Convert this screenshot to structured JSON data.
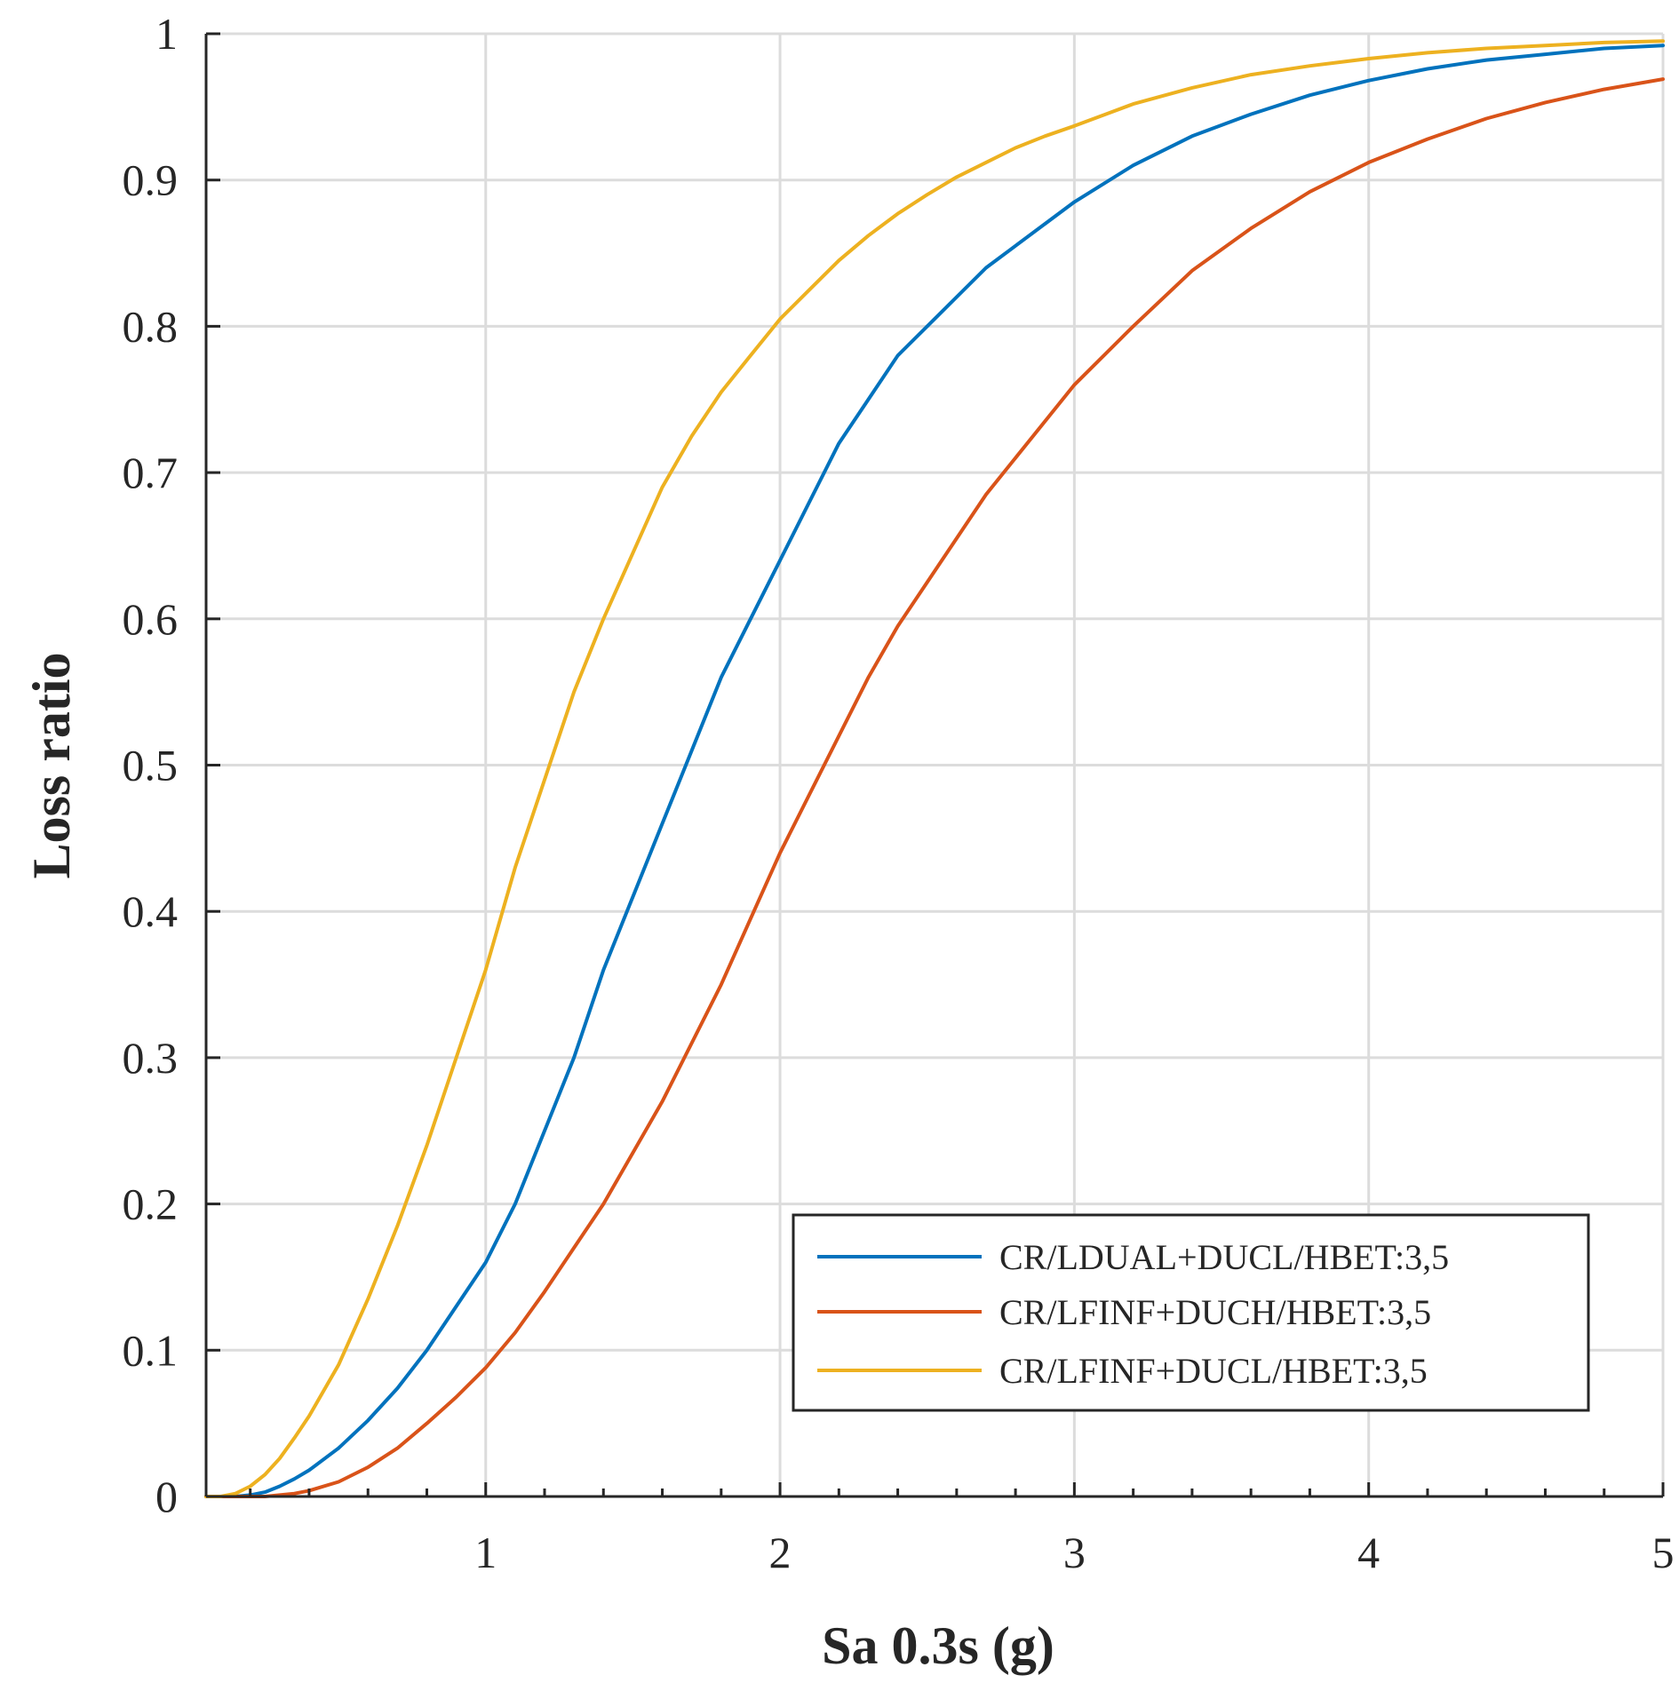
{
  "chart_data": {
    "type": "line",
    "title": "",
    "xlabel": "Sa 0.3s (g)",
    "ylabel": "Loss ratio",
    "xlim": [
      0.05,
      5
    ],
    "ylim": [
      0,
      1
    ],
    "xticks": [
      1,
      2,
      3,
      4,
      5
    ],
    "xtick_labels": [
      "1",
      "2",
      "3",
      "4",
      "5"
    ],
    "yticks": [
      0,
      0.1,
      0.2,
      0.3,
      0.4,
      0.5,
      0.6,
      0.7,
      0.8,
      0.9,
      1
    ],
    "ytick_labels": [
      "0",
      "0.1",
      "0.2",
      "0.3",
      "0.4",
      "0.5",
      "0.6",
      "0.7",
      "0.8",
      "0.9",
      "1"
    ],
    "grid": true,
    "legend_position": "bottom-right",
    "x": [
      0.05,
      0.1,
      0.15,
      0.2,
      0.25,
      0.3,
      0.35,
      0.4,
      0.5,
      0.6,
      0.7,
      0.8,
      0.9,
      1.0,
      1.1,
      1.2,
      1.3,
      1.4,
      1.5,
      1.6,
      1.7,
      1.8,
      1.9,
      2.0,
      2.1,
      2.2,
      2.3,
      2.4,
      2.5,
      2.6,
      2.7,
      2.8,
      2.9,
      3.0,
      3.2,
      3.4,
      3.6,
      3.8,
      4.0,
      4.2,
      4.4,
      4.6,
      4.8,
      5.0
    ],
    "series": [
      {
        "name": "CR/LDUAL+DUCL/HBET:3,5",
        "color": "#0072BD",
        "values": [
          0,
          0,
          0,
          0.001,
          0.003,
          0.007,
          0.012,
          0.018,
          0.033,
          0.052,
          0.074,
          0.1,
          0.13,
          0.16,
          0.2,
          0.25,
          0.3,
          0.36,
          0.41,
          0.46,
          0.51,
          0.56,
          0.6,
          0.64,
          0.68,
          0.72,
          0.75,
          0.78,
          0.8,
          0.82,
          0.84,
          0.855,
          0.87,
          0.885,
          0.91,
          0.93,
          0.945,
          0.958,
          0.968,
          0.976,
          0.982,
          0.986,
          0.99,
          0.992
        ]
      },
      {
        "name": "CR/LFINF+DUCH/HBET:3,5",
        "color": "#D95319",
        "values": [
          0,
          0,
          0,
          0,
          0,
          0.001,
          0.002,
          0.004,
          0.01,
          0.02,
          0.033,
          0.05,
          0.068,
          0.088,
          0.112,
          0.14,
          0.17,
          0.2,
          0.235,
          0.27,
          0.31,
          0.35,
          0.395,
          0.44,
          0.48,
          0.52,
          0.56,
          0.595,
          0.625,
          0.655,
          0.685,
          0.71,
          0.735,
          0.76,
          0.8,
          0.838,
          0.867,
          0.892,
          0.912,
          0.928,
          0.942,
          0.953,
          0.962,
          0.969
        ]
      },
      {
        "name": "CR/LFINF+DUCL/HBET:3,5",
        "color": "#EDB120",
        "values": [
          0,
          0,
          0.002,
          0.007,
          0.015,
          0.026,
          0.04,
          0.055,
          0.09,
          0.135,
          0.185,
          0.24,
          0.3,
          0.36,
          0.43,
          0.49,
          0.55,
          0.6,
          0.645,
          0.69,
          0.725,
          0.755,
          0.78,
          0.805,
          0.825,
          0.845,
          0.862,
          0.877,
          0.89,
          0.902,
          0.912,
          0.922,
          0.93,
          0.937,
          0.952,
          0.963,
          0.972,
          0.978,
          0.983,
          0.987,
          0.99,
          0.992,
          0.994,
          0.995
        ]
      }
    ]
  }
}
